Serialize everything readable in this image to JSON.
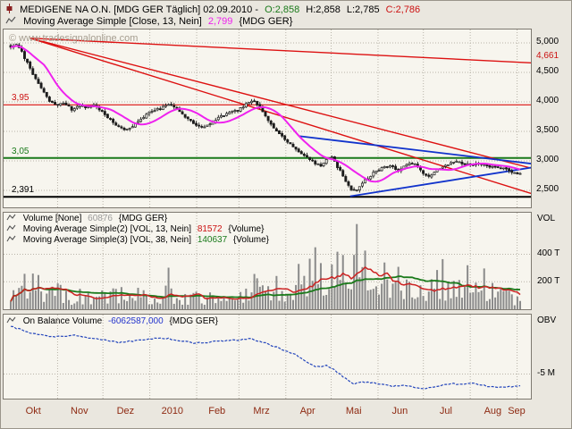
{
  "header": {
    "title": "MEDIGENE NA O.N. [MDG GER  Täglich] 02.09.2010 -",
    "open": "O:2,858",
    "high": "H:2,858",
    "low": "L:2,785",
    "close": "C:2,786",
    "ma_line": {
      "label": "Moving Average Simple [Close, 13, Nein]",
      "value": "2,799",
      "suffix": "{MDG GER}"
    }
  },
  "watermark": "© www.tradesignalonline.com",
  "main_chart": {
    "y_axis_labels": [
      "5,000",
      "4,500",
      "4,000",
      "3,500",
      "3,000",
      "2,500"
    ],
    "trend_label": "4,661",
    "level_labels": {
      "red": "3,95",
      "green": "3,05",
      "black": "2,391"
    }
  },
  "volume_panel": {
    "lines": [
      {
        "label": "Volume [None]",
        "value": "60876",
        "suffix": "{MDG GER}"
      },
      {
        "label": "Moving Average Simple(2) [VOL, 13, Nein]",
        "value": "81572",
        "suffix": "{Volume}"
      },
      {
        "label": "Moving Average Simple(3) [VOL, 38, Nein]",
        "value": "140637",
        "suffix": "{Volume}"
      }
    ],
    "axis": {
      "title": "VOL",
      "ticks": [
        "400 T",
        "200 T"
      ]
    }
  },
  "obv_panel": {
    "label": "On Balance Volume",
    "value": "-6062587,000",
    "suffix": "{MDG GER}",
    "axis": {
      "title": "OBV",
      "ticks": [
        "-5 M"
      ]
    }
  },
  "x_axis": {
    "months": [
      "Okt",
      "Nov",
      "Dez",
      "2010",
      "Feb",
      "Mrz",
      "Apr",
      "Mai",
      "Jun",
      "Jul",
      "Aug",
      "Sep"
    ]
  },
  "chart_data": {
    "type": "candlestick",
    "symbol": "MDG GER",
    "period": "Täglich",
    "date": "02.09.2010",
    "last_ohlc": {
      "open": 2.858,
      "high": 2.858,
      "low": 2.785,
      "close": 2.786
    },
    "ma13_close_last": 2.799,
    "y_axis": {
      "ticks": [
        5.0,
        4.5,
        4.0,
        3.5,
        3.0,
        2.5
      ],
      "unit": "EUR"
    },
    "levels": {
      "red_resistance": 3.95,
      "green_support": 3.05,
      "black_support": 2.391,
      "red_trend_right_value": 4.661
    },
    "trendlines": [
      {
        "x1": 0.05,
        "p1": 5.08,
        "x2": 1.0,
        "p2": 4.661,
        "color": "#dd1111",
        "w": 1.4
      },
      {
        "x1": 0.05,
        "p1": 5.08,
        "x2": 1.0,
        "p2": 2.87,
        "color": "#dd1111",
        "w": 1.4
      },
      {
        "x1": 0.05,
        "p1": 5.08,
        "x2": 1.0,
        "p2": 2.44,
        "color": "#dd1111",
        "w": 1.4
      },
      {
        "x1": 0.558,
        "p1": 3.42,
        "x2": 1.0,
        "p2": 2.95,
        "color": "#1133cc",
        "w": 1.8
      },
      {
        "x1": 0.655,
        "p1": 2.4,
        "x2": 1.0,
        "p2": 2.89,
        "color": "#1133cc",
        "w": 1.8
      }
    ],
    "month_boundaries_f": [
      0.092,
      0.181,
      0.273,
      0.365,
      0.448,
      0.54,
      0.629,
      0.721,
      0.81,
      0.902,
      0.994
    ],
    "price_path": [
      [
        0.0,
        4.93
      ],
      [
        0.01,
        4.97
      ],
      [
        0.02,
        4.88
      ],
      [
        0.03,
        4.7
      ],
      [
        0.045,
        4.45
      ],
      [
        0.06,
        4.22
      ],
      [
        0.075,
        4.03
      ],
      [
        0.09,
        3.93
      ],
      [
        0.105,
        3.99
      ],
      [
        0.12,
        3.87
      ],
      [
        0.135,
        3.94
      ],
      [
        0.15,
        3.9
      ],
      [
        0.165,
        3.95
      ],
      [
        0.18,
        3.82
      ],
      [
        0.2,
        3.65
      ],
      [
        0.215,
        3.55
      ],
      [
        0.23,
        3.52
      ],
      [
        0.25,
        3.68
      ],
      [
        0.265,
        3.78
      ],
      [
        0.285,
        3.86
      ],
      [
        0.3,
        3.92
      ],
      [
        0.315,
        3.96
      ],
      [
        0.33,
        3.85
      ],
      [
        0.345,
        3.72
      ],
      [
        0.36,
        3.64
      ],
      [
        0.375,
        3.56
      ],
      [
        0.39,
        3.62
      ],
      [
        0.405,
        3.72
      ],
      [
        0.42,
        3.78
      ],
      [
        0.435,
        3.83
      ],
      [
        0.45,
        3.88
      ],
      [
        0.465,
        3.98
      ],
      [
        0.475,
        4.01
      ],
      [
        0.49,
        3.9
      ],
      [
        0.505,
        3.7
      ],
      [
        0.52,
        3.52
      ],
      [
        0.535,
        3.4
      ],
      [
        0.55,
        3.28
      ],
      [
        0.565,
        3.16
      ],
      [
        0.58,
        3.06
      ],
      [
        0.595,
        2.97
      ],
      [
        0.61,
        2.92
      ],
      [
        0.62,
        3.02
      ],
      [
        0.63,
        3.06
      ],
      [
        0.64,
        2.92
      ],
      [
        0.65,
        2.78
      ],
      [
        0.66,
        2.62
      ],
      [
        0.672,
        2.48
      ],
      [
        0.68,
        2.52
      ],
      [
        0.69,
        2.63
      ],
      [
        0.7,
        2.7
      ],
      [
        0.715,
        2.82
      ],
      [
        0.73,
        2.88
      ],
      [
        0.745,
        2.92
      ],
      [
        0.76,
        2.83
      ],
      [
        0.775,
        2.92
      ],
      [
        0.79,
        2.97
      ],
      [
        0.8,
        2.9
      ],
      [
        0.81,
        2.8
      ],
      [
        0.82,
        2.72
      ],
      [
        0.83,
        2.8
      ],
      [
        0.845,
        2.89
      ],
      [
        0.86,
        2.95
      ],
      [
        0.875,
        2.99
      ],
      [
        0.89,
        2.94
      ],
      [
        0.905,
        2.93
      ],
      [
        0.92,
        2.96
      ],
      [
        0.935,
        2.91
      ],
      [
        0.95,
        2.89
      ],
      [
        0.965,
        2.87
      ],
      [
        0.98,
        2.83
      ],
      [
        0.99,
        2.8
      ],
      [
        1.0,
        2.786
      ]
    ],
    "volume": {
      "last": 60876,
      "ma13_last": 81572,
      "ma38_last": 140637,
      "axis_ticks_T": [
        400,
        200
      ],
      "path_T": [
        [
          0.0,
          140
        ],
        [
          0.03,
          200
        ],
        [
          0.06,
          160
        ],
        [
          0.09,
          110
        ],
        [
          0.12,
          90
        ],
        [
          0.15,
          95
        ],
        [
          0.18,
          85
        ],
        [
          0.21,
          110
        ],
        [
          0.24,
          90
        ],
        [
          0.27,
          95
        ],
        [
          0.3,
          110
        ],
        [
          0.33,
          95
        ],
        [
          0.36,
          85
        ],
        [
          0.39,
          90
        ],
        [
          0.42,
          80
        ],
        [
          0.45,
          110
        ],
        [
          0.47,
          160
        ],
        [
          0.5,
          170
        ],
        [
          0.53,
          150
        ],
        [
          0.56,
          170
        ],
        [
          0.58,
          220
        ],
        [
          0.6,
          280
        ],
        [
          0.62,
          240
        ],
        [
          0.645,
          300
        ],
        [
          0.66,
          350
        ],
        [
          0.672,
          420
        ],
        [
          0.69,
          300
        ],
        [
          0.71,
          260
        ],
        [
          0.73,
          230
        ],
        [
          0.75,
          200
        ],
        [
          0.77,
          180
        ],
        [
          0.79,
          190
        ],
        [
          0.81,
          170
        ],
        [
          0.83,
          160
        ],
        [
          0.85,
          170
        ],
        [
          0.87,
          200
        ],
        [
          0.89,
          230
        ],
        [
          0.905,
          260
        ],
        [
          0.92,
          200
        ],
        [
          0.94,
          150
        ],
        [
          0.955,
          120
        ],
        [
          0.97,
          100
        ],
        [
          0.985,
          80
        ],
        [
          1.0,
          61
        ]
      ]
    },
    "obv": {
      "last": -6062587.0,
      "axis_tick_M": -5,
      "path_M": [
        [
          0.0,
          -0.8
        ],
        [
          0.03,
          -1.3
        ],
        [
          0.06,
          -1.6
        ],
        [
          0.09,
          -1.75
        ],
        [
          0.12,
          -1.6
        ],
        [
          0.15,
          -1.8
        ],
        [
          0.18,
          -2.0
        ],
        [
          0.21,
          -2.25
        ],
        [
          0.24,
          -2.1
        ],
        [
          0.27,
          -1.95
        ],
        [
          0.3,
          -1.85
        ],
        [
          0.33,
          -2.05
        ],
        [
          0.36,
          -2.3
        ],
        [
          0.39,
          -2.2
        ],
        [
          0.42,
          -2.1
        ],
        [
          0.45,
          -2.0
        ],
        [
          0.47,
          -1.9
        ],
        [
          0.5,
          -2.3
        ],
        [
          0.53,
          -2.8
        ],
        [
          0.56,
          -3.3
        ],
        [
          0.58,
          -3.9
        ],
        [
          0.6,
          -4.4
        ],
        [
          0.62,
          -4.2
        ],
        [
          0.64,
          -4.8
        ],
        [
          0.66,
          -5.5
        ],
        [
          0.672,
          -5.9
        ],
        [
          0.69,
          -5.7
        ],
        [
          0.71,
          -5.75
        ],
        [
          0.73,
          -5.9
        ],
        [
          0.75,
          -6.1
        ],
        [
          0.77,
          -5.95
        ],
        [
          0.79,
          -6.15
        ],
        [
          0.81,
          -6.3
        ],
        [
          0.83,
          -6.1
        ],
        [
          0.85,
          -5.95
        ],
        [
          0.87,
          -5.85
        ],
        [
          0.89,
          -5.95
        ],
        [
          0.905,
          -5.8
        ],
        [
          0.92,
          -5.9
        ],
        [
          0.935,
          -6.05
        ],
        [
          0.95,
          -6.15
        ],
        [
          0.965,
          -6.1
        ],
        [
          0.98,
          -6.1
        ],
        [
          1.0,
          -6.06
        ]
      ]
    },
    "colors": {
      "candle": "#1c1c1c",
      "ma_price": "#ee22ee",
      "red": "#dd1111",
      "green": "#1a7a1a",
      "blue": "#1133cc",
      "vol_bar": "#8a8a8a",
      "vol_ma13": "#cc2222",
      "vol_ma38": "#1a7a1a",
      "obv_line": "#2244bb",
      "grid": "#b8b3a8"
    }
  }
}
